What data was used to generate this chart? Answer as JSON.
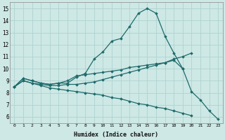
{
  "xlabel": "Humidex (Indice chaleur)",
  "background_color": "#cde8e5",
  "grid_color": "#aacfcc",
  "line_color": "#1e6b6b",
  "xlim": [
    -0.5,
    23.5
  ],
  "ylim": [
    5.5,
    15.5
  ],
  "xticks": [
    0,
    1,
    2,
    3,
    4,
    5,
    6,
    7,
    8,
    9,
    10,
    11,
    12,
    13,
    14,
    15,
    16,
    17,
    18,
    19,
    20,
    21,
    22,
    23
  ],
  "yticks": [
    6,
    7,
    8,
    9,
    10,
    11,
    12,
    13,
    14,
    15
  ],
  "line1_x": [
    0,
    1,
    2,
    3,
    4,
    5,
    6,
    7,
    8,
    9,
    10,
    11,
    12,
    13,
    14,
    15,
    16,
    17,
    18,
    19,
    20,
    21,
    22,
    23
  ],
  "line1_y": [
    8.5,
    9.2,
    9.0,
    8.8,
    8.7,
    8.8,
    8.8,
    9.3,
    9.6,
    10.8,
    11.4,
    12.3,
    12.5,
    13.5,
    14.6,
    15.0,
    14.6,
    12.7,
    11.3,
    10.0,
    8.1,
    7.4,
    6.5,
    5.8
  ],
  "line2_x": [
    0,
    1,
    2,
    3,
    4,
    5,
    6,
    7,
    8,
    9,
    10,
    11,
    12,
    13,
    14,
    15,
    16,
    17,
    18,
    19,
    20,
    21,
    22,
    23
  ],
  "line2_y": [
    8.5,
    9.0,
    8.8,
    8.7,
    8.6,
    8.6,
    8.7,
    8.7,
    8.8,
    8.9,
    9.1,
    9.3,
    9.5,
    9.7,
    9.9,
    10.1,
    10.3,
    10.5,
    10.8,
    11.0,
    11.3,
    null,
    null,
    null
  ],
  "line3_x": [
    0,
    1,
    2,
    3,
    4,
    5,
    6,
    7,
    8,
    9,
    10,
    11,
    12,
    13,
    14,
    15,
    16,
    17,
    18,
    19,
    20,
    21,
    22,
    23
  ],
  "line3_y": [
    8.5,
    9.0,
    8.8,
    8.6,
    8.4,
    8.3,
    8.2,
    8.1,
    8.0,
    7.9,
    7.8,
    7.6,
    7.5,
    7.3,
    7.1,
    7.0,
    6.8,
    6.7,
    6.5,
    6.3,
    6.1,
    null,
    null,
    null
  ],
  "line4_x": [
    0,
    1,
    2,
    3,
    4,
    5,
    6,
    7,
    8,
    9,
    10,
    11,
    12,
    13,
    14,
    15,
    16,
    17,
    18,
    19,
    20,
    21,
    22,
    23
  ],
  "line4_y": [
    8.5,
    9.2,
    9.0,
    8.8,
    8.7,
    8.8,
    9.0,
    9.4,
    9.5,
    9.6,
    9.7,
    9.8,
    9.9,
    10.1,
    10.2,
    10.3,
    10.4,
    10.5,
    10.7,
    10.0,
    null,
    null,
    null,
    null
  ]
}
